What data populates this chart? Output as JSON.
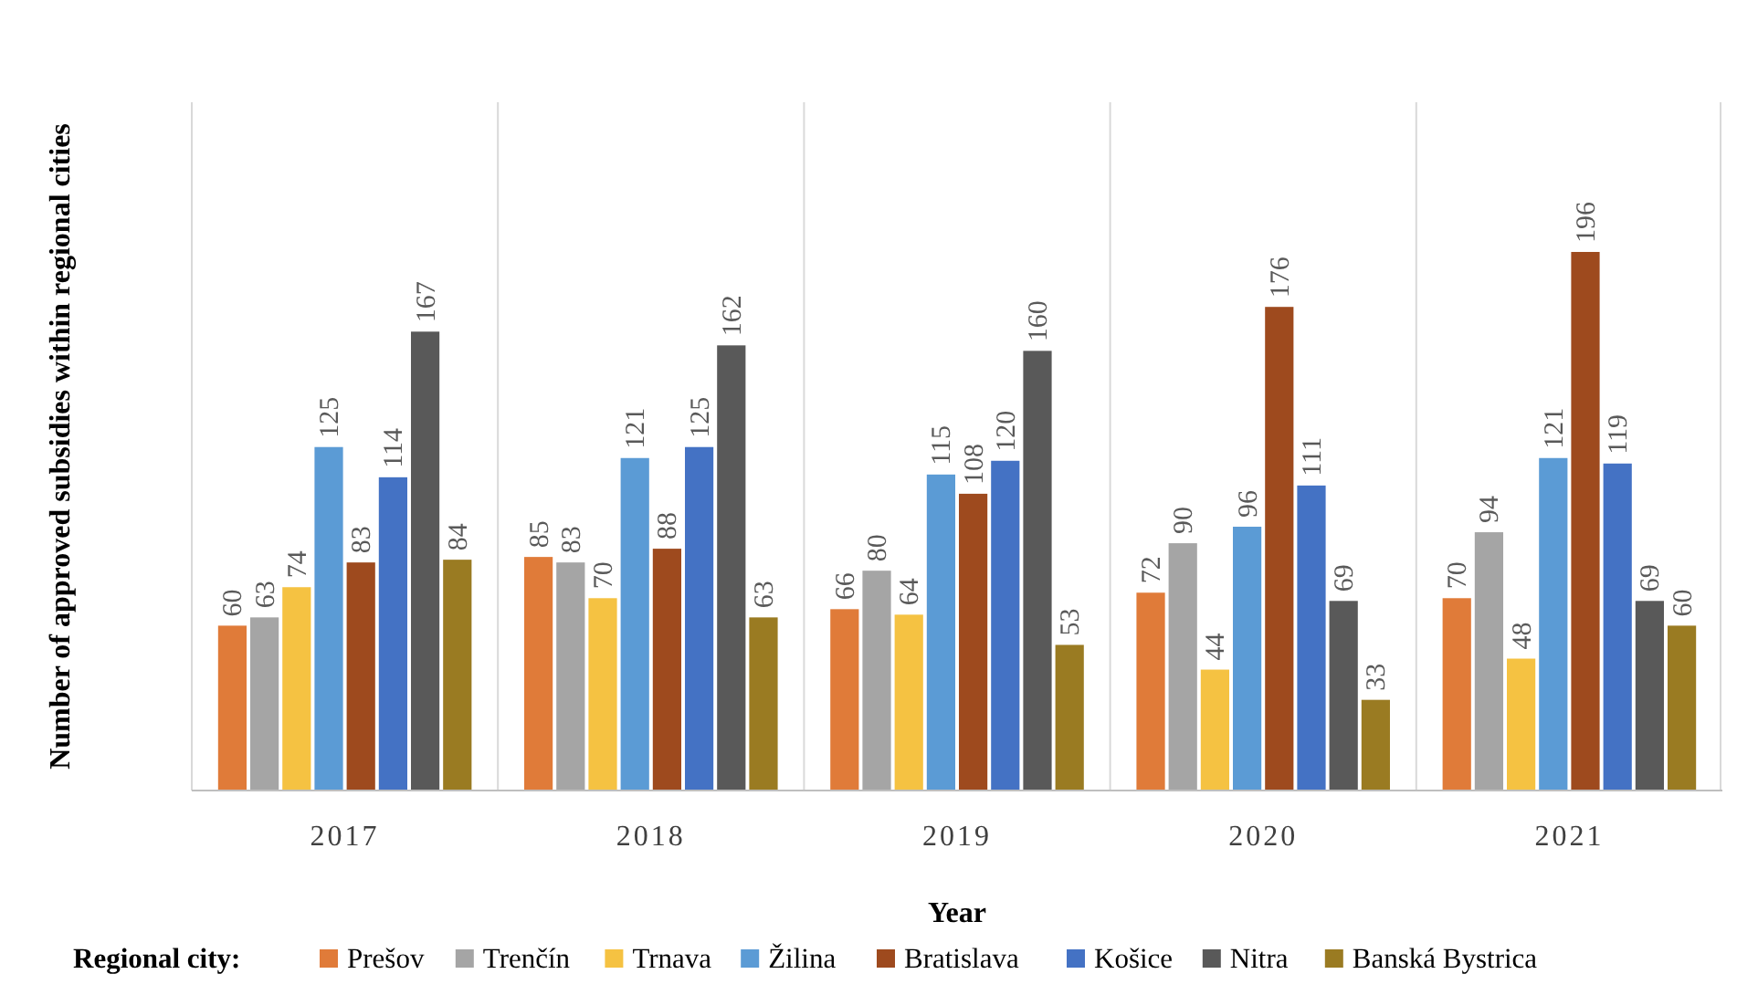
{
  "chart_data": {
    "type": "bar",
    "xlabel": "Year",
    "ylabel": "Number of approved subsidies within regional cities",
    "legend_title": "Regional city:",
    "legend": "bottom",
    "grid": "x",
    "data_labels": true,
    "categories": [
      "2017",
      "2018",
      "2019",
      "2020",
      "2021"
    ],
    "series": [
      {
        "name": "Prešov",
        "color": "#e07b39",
        "values": [
          60,
          85,
          66,
          72,
          70
        ]
      },
      {
        "name": "Trenčín",
        "color": "#a5a5a5",
        "values": [
          63,
          83,
          80,
          90,
          94
        ]
      },
      {
        "name": "Trnava",
        "color": "#f5c242",
        "values": [
          74,
          70,
          64,
          44,
          48
        ]
      },
      {
        "name": "Žilina",
        "color": "#5b9bd5",
        "values": [
          125,
          121,
          115,
          96,
          121
        ]
      },
      {
        "name": "Bratislava",
        "color": "#9e4a1e",
        "values": [
          83,
          88,
          108,
          176,
          196
        ]
      },
      {
        "name": "Košice",
        "color": "#4472c4",
        "values": [
          114,
          125,
          120,
          111,
          119
        ]
      },
      {
        "name": "Nitra",
        "color": "#595959",
        "values": [
          167,
          162,
          160,
          69,
          69
        ]
      },
      {
        "name": "Banská Bystrica",
        "color": "#9a7b22",
        "values": [
          84,
          63,
          53,
          33,
          60
        ]
      }
    ]
  }
}
